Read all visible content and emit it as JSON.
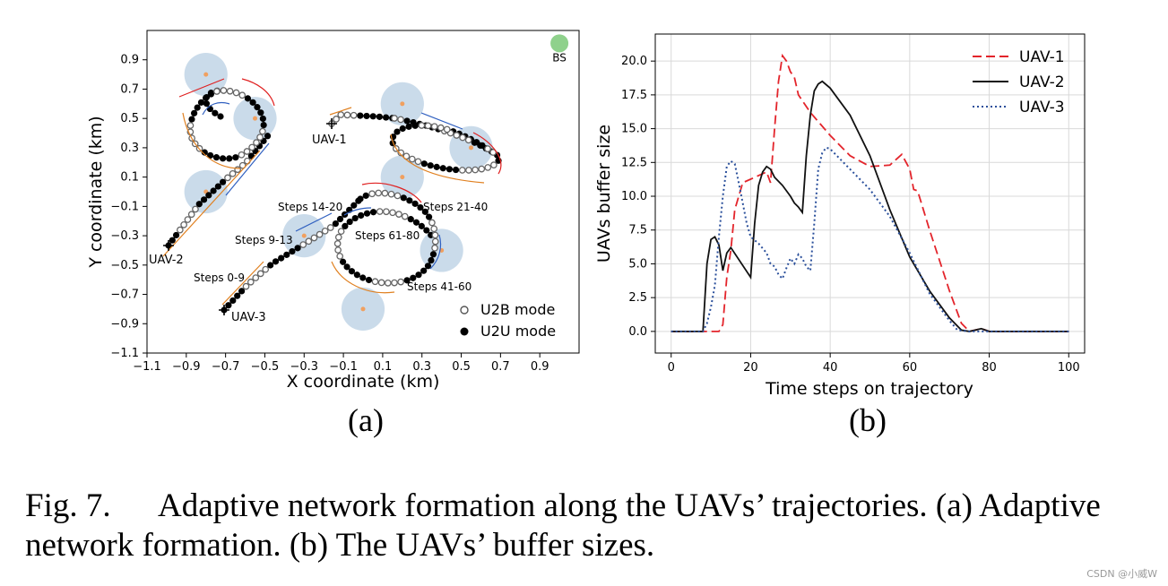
{
  "caption": {
    "label": "Fig. 7.",
    "line1": "Adaptive network formation along the UAVs’ trajectories. (a) Adaptive",
    "line2": "network formation. (b) The UAVs’ buffer sizes."
  },
  "watermark": "CSDN @小威W",
  "chart_data": [
    {
      "type": "scatter",
      "panel_label": "(a)",
      "xlabel": "X coordinate (km)",
      "ylabel": "Y coordinate (km)",
      "xlim": [
        -1.1,
        1.1
      ],
      "ylim": [
        -1.1,
        1.1
      ],
      "xticks": [
        "−1.1",
        "−0.9",
        "−0.7",
        "−0.5",
        "−0.3",
        "−0.1",
        "0.1",
        "0.3",
        "0.5",
        "0.7",
        "0.9"
      ],
      "yticks": [
        "−1.1",
        "−0.9",
        "−0.7",
        "−0.5",
        "−0.3",
        "−0.1",
        "0.1",
        "0.3",
        "0.5",
        "0.7",
        "0.9"
      ],
      "grid": false,
      "legend_position": "bottom-right",
      "legend": [
        "U2B mode",
        "U2U mode"
      ],
      "bs": {
        "label": "BS",
        "x": 1.0,
        "y": 1.0,
        "color": "#8fd18c"
      },
      "coverage_radius": 0.11,
      "ground_nodes": [
        {
          "x": -0.8,
          "y": 0.8
        },
        {
          "x": -0.8,
          "y": 0.0
        },
        {
          "x": -0.55,
          "y": 0.5
        },
        {
          "x": 0.2,
          "y": 0.6
        },
        {
          "x": 0.2,
          "y": 0.1
        },
        {
          "x": 0.55,
          "y": 0.3
        },
        {
          "x": -0.3,
          "y": -0.3
        },
        {
          "x": 0.4,
          "y": -0.4
        },
        {
          "x": -0.0,
          "y": -0.8
        }
      ],
      "uav_labels": [
        {
          "label": "UAV-1",
          "x": -0.15,
          "y": 0.45
        },
        {
          "label": "UAV-2",
          "x": -1.0,
          "y": -0.38
        },
        {
          "label": "UAV-3",
          "x": -0.72,
          "y": -0.82
        }
      ],
      "step_labels": [
        {
          "text": "Steps 0-9",
          "x": -0.78,
          "y": -0.64
        },
        {
          "text": "Steps 9-13",
          "x": -0.55,
          "y": -0.32
        },
        {
          "text": "Steps 14-20",
          "x": -0.3,
          "y": -0.1
        },
        {
          "text": "Steps 21-40",
          "x": 0.35,
          "y": -0.1
        },
        {
          "text": "Steps 61-80",
          "x": 0.01,
          "y": -0.3
        },
        {
          "text": "Steps 41-60",
          "x": 0.4,
          "y": -0.67
        }
      ],
      "colors": {
        "coverage": "#b8cfe3",
        "node": "#f0a060",
        "u2b": "#666666",
        "u2u": "#000000"
      }
    },
    {
      "type": "line",
      "panel_label": "(b)",
      "xlabel": "Time steps on trajectory",
      "ylabel": "UAVs buffer size",
      "xlim": [
        -4,
        104
      ],
      "ylim": [
        -1.6,
        22.0
      ],
      "xticks": [
        "0",
        "20",
        "40",
        "60",
        "80",
        "100"
      ],
      "yticks": [
        "0.0",
        "2.5",
        "5.0",
        "7.5",
        "10.0",
        "12.5",
        "15.0",
        "17.5",
        "20.0"
      ],
      "grid": true,
      "legend_position": "top-right",
      "series": [
        {
          "name": "UAV-1",
          "color": "#e3242b",
          "dash": "10,5",
          "points": [
            [
              0,
              0
            ],
            [
              12,
              0
            ],
            [
              13,
              0.5
            ],
            [
              14,
              4.0
            ],
            [
              15,
              6.0
            ],
            [
              16,
              9.0
            ],
            [
              18,
              11.0
            ],
            [
              24,
              11.8
            ],
            [
              25,
              11.0
            ],
            [
              26,
              15.0
            ],
            [
              27,
              18.5
            ],
            [
              28,
              20.4
            ],
            [
              29,
              20.0
            ],
            [
              30,
              19.2
            ],
            [
              31,
              18.8
            ],
            [
              32,
              17.5
            ],
            [
              35,
              16.2
            ],
            [
              40,
              14.5
            ],
            [
              45,
              13.0
            ],
            [
              50,
              12.2
            ],
            [
              55,
              12.3
            ],
            [
              58,
              13.1
            ],
            [
              60,
              12.0
            ],
            [
              61,
              10.5
            ],
            [
              62,
              10.4
            ],
            [
              65,
              7.5
            ],
            [
              70,
              3.0
            ],
            [
              73,
              0.6
            ],
            [
              75,
              0
            ],
            [
              78,
              0.2
            ],
            [
              80,
              0
            ],
            [
              100,
              0
            ]
          ]
        },
        {
          "name": "UAV-2",
          "color": "#111111",
          "dash": "",
          "points": [
            [
              0,
              0
            ],
            [
              8,
              0
            ],
            [
              9,
              5.0
            ],
            [
              10,
              6.8
            ],
            [
              11,
              7.0
            ],
            [
              12,
              6.4
            ],
            [
              13,
              4.5
            ],
            [
              14,
              5.8
            ],
            [
              15,
              6.2
            ],
            [
              20,
              4.0
            ],
            [
              21,
              8.0
            ],
            [
              22,
              10.8
            ],
            [
              23,
              11.8
            ],
            [
              24,
              12.2
            ],
            [
              25,
              12.0
            ],
            [
              26,
              11.4
            ],
            [
              28,
              10.8
            ],
            [
              30,
              10.0
            ],
            [
              31,
              9.5
            ],
            [
              32,
              9.2
            ],
            [
              33,
              8.8
            ],
            [
              34,
              13.0
            ],
            [
              35,
              16.0
            ],
            [
              36,
              17.8
            ],
            [
              37,
              18.3
            ],
            [
              38,
              18.5
            ],
            [
              40,
              18.0
            ],
            [
              45,
              16.0
            ],
            [
              50,
              13.0
            ],
            [
              55,
              9.0
            ],
            [
              60,
              5.5
            ],
            [
              65,
              3.0
            ],
            [
              70,
              1.0
            ],
            [
              73,
              0.1
            ],
            [
              75,
              0
            ],
            [
              78,
              0.2
            ],
            [
              80,
              0
            ],
            [
              100,
              0
            ]
          ]
        },
        {
          "name": "UAV-3",
          "color": "#2a4f9b",
          "dash": "2,3",
          "points": [
            [
              0,
              0
            ],
            [
              8,
              0
            ],
            [
              9,
              0.6
            ],
            [
              10,
              1.8
            ],
            [
              11,
              3.4
            ],
            [
              12,
              7.0
            ],
            [
              13,
              10.0
            ],
            [
              14,
              12.2
            ],
            [
              15,
              12.6
            ],
            [
              16,
              12.4
            ],
            [
              17,
              11.0
            ],
            [
              18,
              9.5
            ],
            [
              19,
              8.0
            ],
            [
              20,
              7.0
            ],
            [
              22,
              6.5
            ],
            [
              24,
              5.8
            ],
            [
              25,
              5.0
            ],
            [
              26,
              4.8
            ],
            [
              27,
              4.2
            ],
            [
              28,
              3.9
            ],
            [
              29,
              4.7
            ],
            [
              30,
              5.4
            ],
            [
              31,
              5.0
            ],
            [
              32,
              5.7
            ],
            [
              33,
              5.4
            ],
            [
              34,
              4.8
            ],
            [
              35,
              4.5
            ],
            [
              36,
              8.0
            ],
            [
              37,
              12.0
            ],
            [
              38,
              13.2
            ],
            [
              39,
              13.6
            ],
            [
              40,
              13.5
            ],
            [
              45,
              12.0
            ],
            [
              50,
              10.5
            ],
            [
              55,
              8.5
            ],
            [
              60,
              5.8
            ],
            [
              65,
              2.8
            ],
            [
              70,
              0.8
            ],
            [
              72,
              0.1
            ],
            [
              75,
              0
            ],
            [
              80,
              0
            ],
            [
              100,
              0
            ]
          ]
        }
      ]
    }
  ]
}
